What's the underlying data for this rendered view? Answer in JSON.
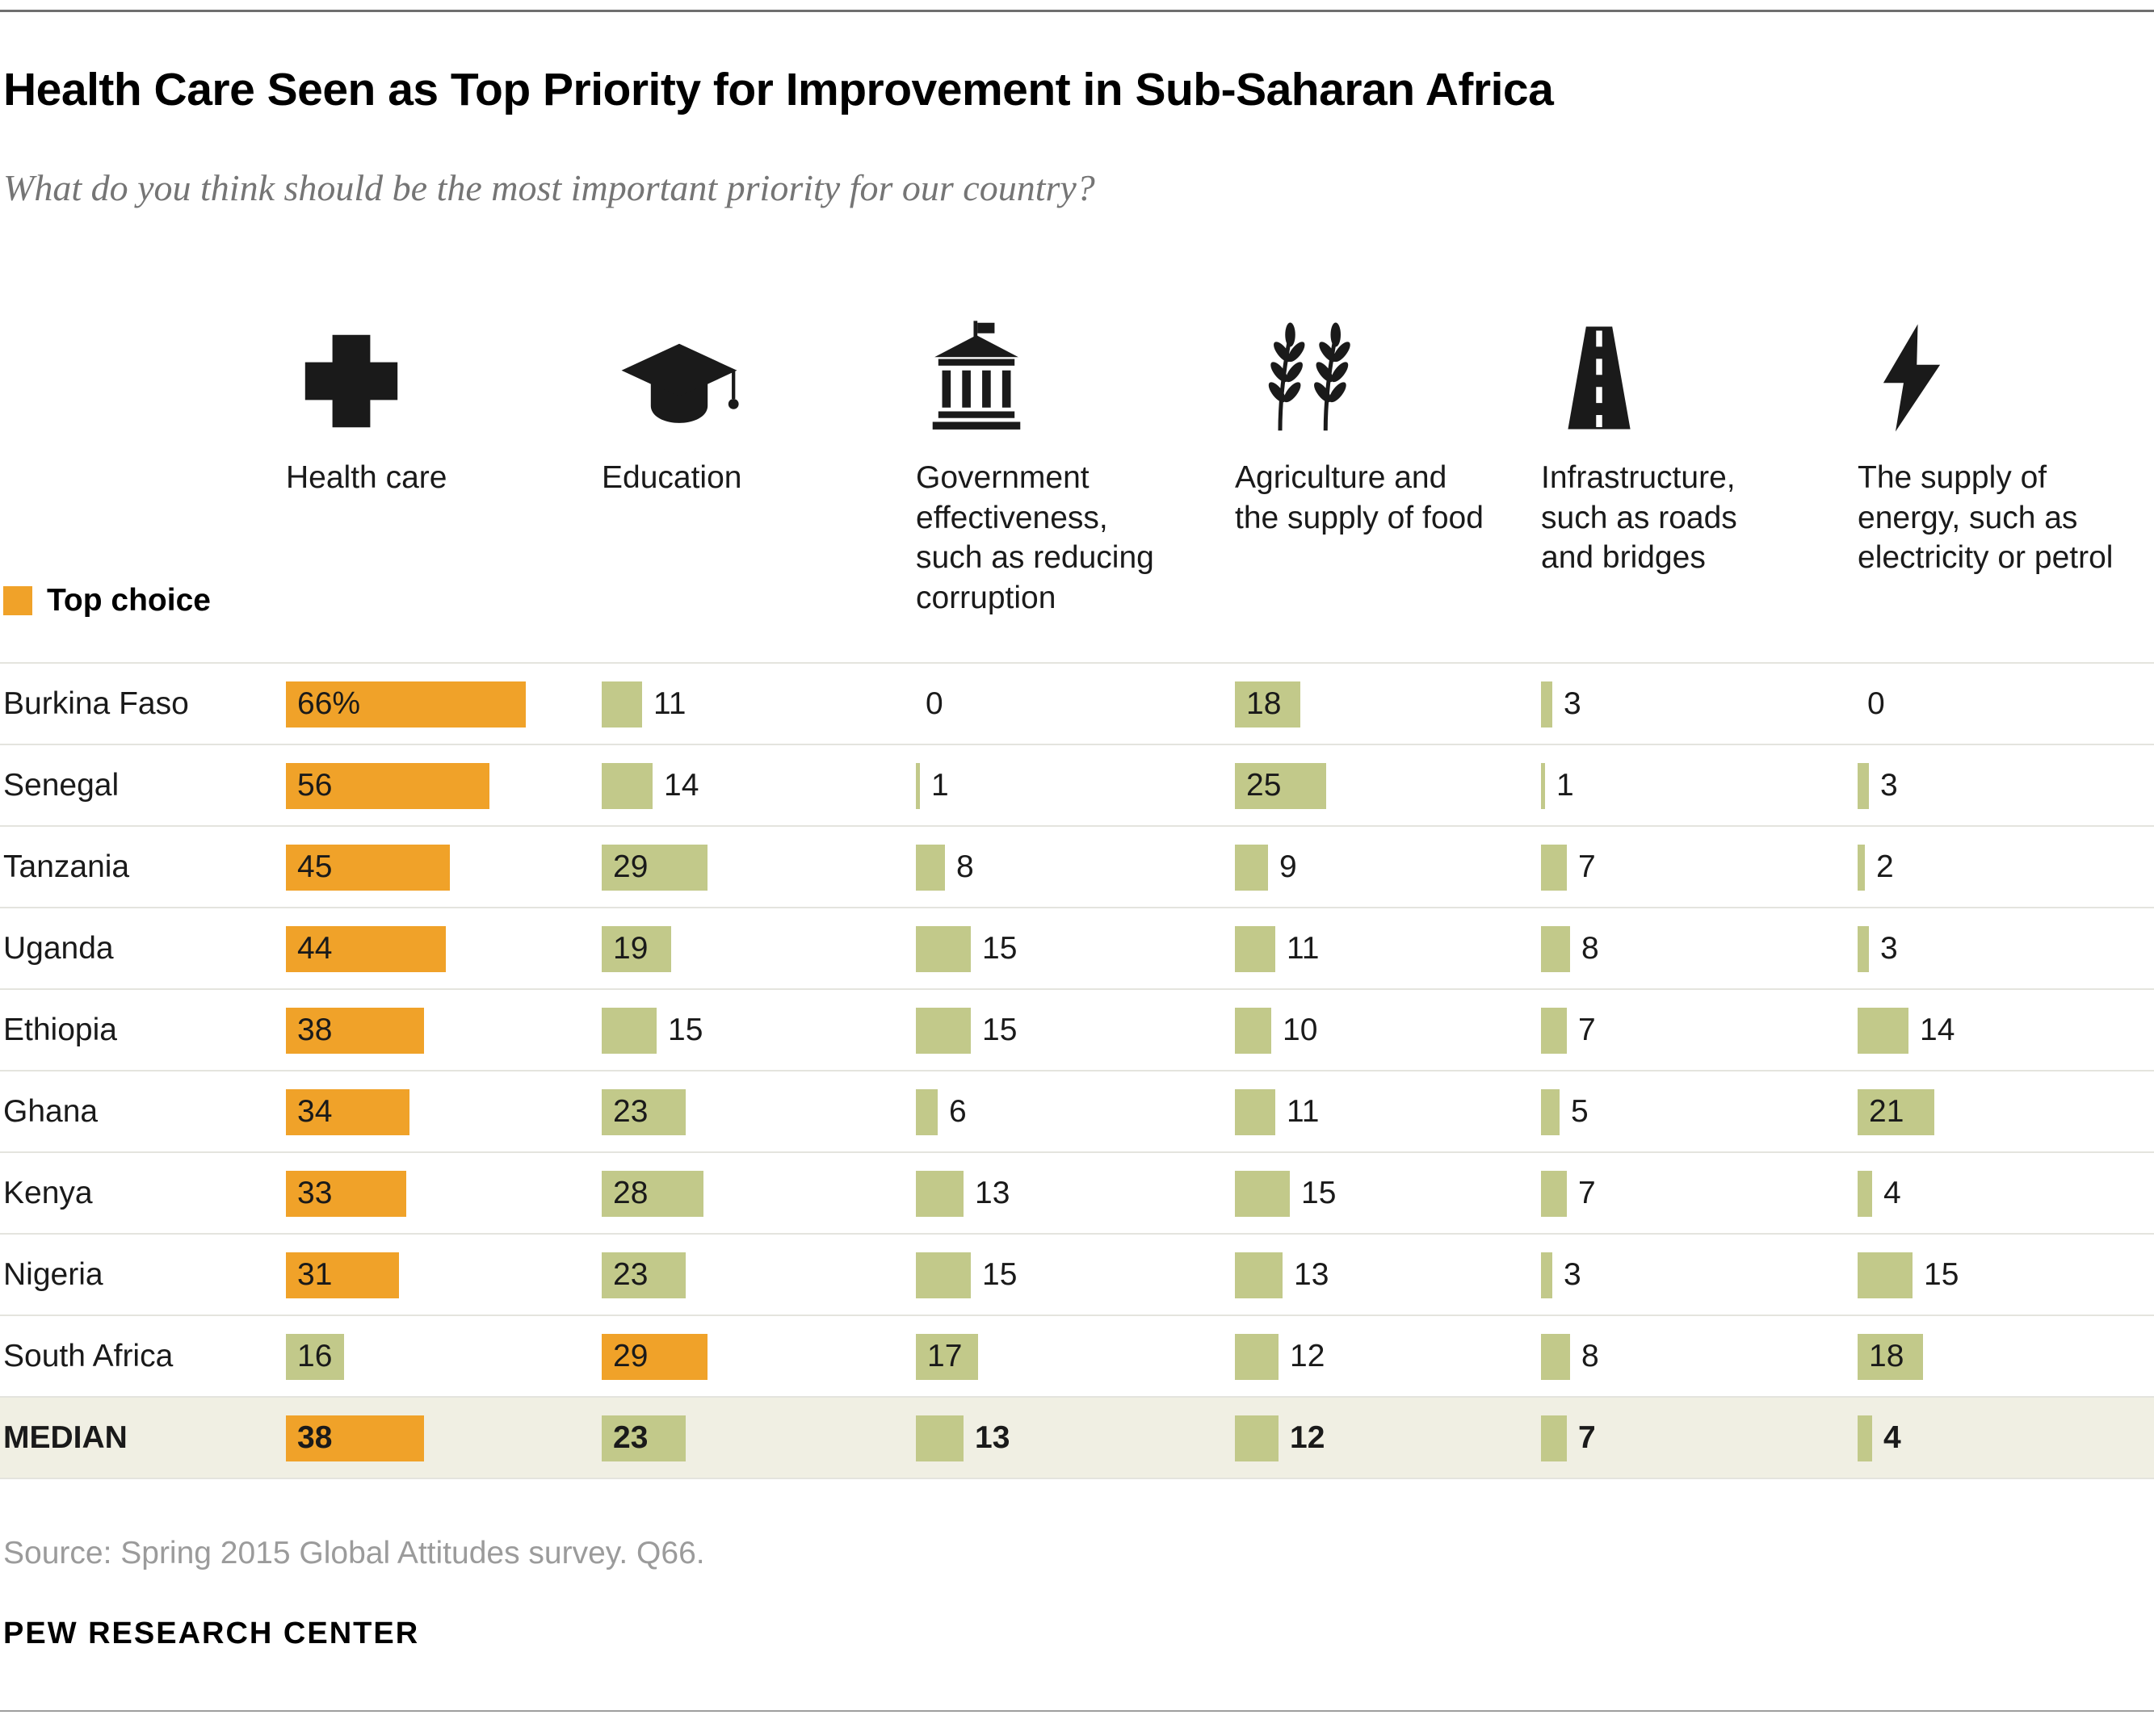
{
  "title": "Health Care Seen as Top Priority for Improvement in Sub-Saharan Africa",
  "subtitle": "What do you think should be the most important priority for our country?",
  "legend": {
    "label": "Top choice",
    "color": "#F0A229"
  },
  "source": "Source: Spring 2015 Global Attitudes survey. Q66.",
  "branding": "PEW RESEARCH CENTER",
  "chart_data": {
    "type": "bar",
    "orientation": "horizontal",
    "title": "Health Care Seen as Top Priority for Improvement in Sub-Saharan Africa",
    "subtitle": "What do you think should be the most important priority for our country?",
    "legend_label": "Top choice",
    "value_range": [
      0,
      66
    ],
    "bar_colors": {
      "top_choice": "#F0A229",
      "other": "#C2C98A"
    },
    "columns": [
      {
        "label": "Health care",
        "icon": "health-cross-icon"
      },
      {
        "label": "Education",
        "icon": "graduation-cap-icon"
      },
      {
        "label": "Government effectiveness, such as reducing corruption",
        "icon": "government-building-icon"
      },
      {
        "label": "Agriculture and the supply of food",
        "icon": "wheat-icon"
      },
      {
        "label": "Infrastructure, such as roads and bridges",
        "icon": "road-icon"
      },
      {
        "label": "The supply of energy, such as electricity or petrol",
        "icon": "lightning-bolt-icon"
      }
    ],
    "rows": [
      {
        "country": "Burkina Faso",
        "values": [
          66,
          11,
          0,
          18,
          3,
          0
        ],
        "labels": [
          "66%",
          "11",
          "0",
          "18",
          "3",
          "0"
        ],
        "top_choice_index": 0,
        "is_median": false
      },
      {
        "country": "Senegal",
        "values": [
          56,
          14,
          1,
          25,
          1,
          3
        ],
        "labels": [
          "56",
          "14",
          "1",
          "25",
          "1",
          "3"
        ],
        "top_choice_index": 0,
        "is_median": false
      },
      {
        "country": "Tanzania",
        "values": [
          45,
          29,
          8,
          9,
          7,
          2
        ],
        "labels": [
          "45",
          "29",
          "8",
          "9",
          "7",
          "2"
        ],
        "top_choice_index": 0,
        "is_median": false
      },
      {
        "country": "Uganda",
        "values": [
          44,
          19,
          15,
          11,
          8,
          3
        ],
        "labels": [
          "44",
          "19",
          "15",
          "11",
          "8",
          "3"
        ],
        "top_choice_index": 0,
        "is_median": false
      },
      {
        "country": "Ethiopia",
        "values": [
          38,
          15,
          15,
          10,
          7,
          14
        ],
        "labels": [
          "38",
          "15",
          "15",
          "10",
          "7",
          "14"
        ],
        "top_choice_index": 0,
        "is_median": false
      },
      {
        "country": "Ghana",
        "values": [
          34,
          23,
          6,
          11,
          5,
          21
        ],
        "labels": [
          "34",
          "23",
          "6",
          "11",
          "5",
          "21"
        ],
        "top_choice_index": 0,
        "is_median": false
      },
      {
        "country": "Kenya",
        "values": [
          33,
          28,
          13,
          15,
          7,
          4
        ],
        "labels": [
          "33",
          "28",
          "13",
          "15",
          "7",
          "4"
        ],
        "top_choice_index": 0,
        "is_median": false
      },
      {
        "country": "Nigeria",
        "values": [
          31,
          23,
          15,
          13,
          3,
          15
        ],
        "labels": [
          "31",
          "23",
          "15",
          "13",
          "3",
          "15"
        ],
        "top_choice_index": 0,
        "is_median": false
      },
      {
        "country": "South Africa",
        "values": [
          16,
          29,
          17,
          12,
          8,
          18
        ],
        "labels": [
          "16",
          "29",
          "17",
          "12",
          "8",
          "18"
        ],
        "top_choice_index": 1,
        "is_median": false
      },
      {
        "country": "MEDIAN",
        "values": [
          38,
          23,
          13,
          12,
          7,
          4
        ],
        "labels": [
          "38",
          "23",
          "13",
          "12",
          "7",
          "4"
        ],
        "top_choice_index": 0,
        "is_median": true
      }
    ]
  }
}
